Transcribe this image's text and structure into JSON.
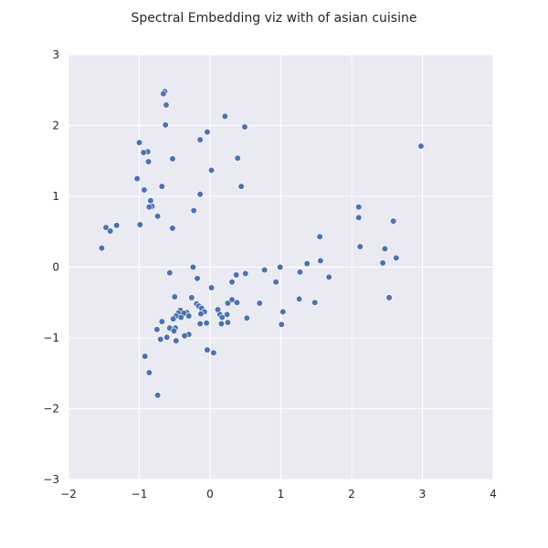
{
  "chart_data": {
    "type": "scatter",
    "title": "Spectral Embedding viz with of asian cuisine",
    "xlabel": "",
    "ylabel": "",
    "xlim": [
      -2,
      4
    ],
    "ylim": [
      -3,
      3
    ],
    "xticks": [
      "−2",
      "−1",
      "0",
      "1",
      "2",
      "3",
      "4"
    ],
    "yticks": [
      "3",
      "2",
      "1",
      "0",
      "−1",
      "−2",
      "−3"
    ],
    "grid": true,
    "point_color": "#4c72b0",
    "background_color": "#eaeaf2",
    "points": [
      {
        "x": -0.64,
        "y": 2.48
      },
      {
        "x": -0.66,
        "y": 2.45
      },
      {
        "x": -0.62,
        "y": 2.29
      },
      {
        "x": 0.21,
        "y": 2.13
      },
      {
        "x": -0.63,
        "y": 2.01
      },
      {
        "x": 0.49,
        "y": 1.98
      },
      {
        "x": -0.04,
        "y": 1.91
      },
      {
        "x": -0.14,
        "y": 1.8
      },
      {
        "x": -1.0,
        "y": 1.76
      },
      {
        "x": -0.88,
        "y": 1.63
      },
      {
        "x": -0.94,
        "y": 1.62
      },
      {
        "x": -0.53,
        "y": 1.53
      },
      {
        "x": 0.39,
        "y": 1.54
      },
      {
        "x": -0.87,
        "y": 1.49
      },
      {
        "x": 0.02,
        "y": 1.37
      },
      {
        "x": -1.03,
        "y": 1.25
      },
      {
        "x": -0.68,
        "y": 1.14
      },
      {
        "x": 0.44,
        "y": 1.14
      },
      {
        "x": -0.93,
        "y": 1.09
      },
      {
        "x": -0.14,
        "y": 1.03
      },
      {
        "x": -0.84,
        "y": 0.94
      },
      {
        "x": -0.82,
        "y": 0.86
      },
      {
        "x": -0.86,
        "y": 0.85
      },
      {
        "x": -0.23,
        "y": 0.8
      },
      {
        "x": -0.74,
        "y": 0.72
      },
      {
        "x": -0.99,
        "y": 0.6
      },
      {
        "x": -1.32,
        "y": 0.59
      },
      {
        "x": -1.47,
        "y": 0.56
      },
      {
        "x": -0.53,
        "y": 0.55
      },
      {
        "x": -1.41,
        "y": 0.51
      },
      {
        "x": -1.53,
        "y": 0.27
      },
      {
        "x": 2.98,
        "y": 1.71
      },
      {
        "x": 2.1,
        "y": 0.85
      },
      {
        "x": 2.1,
        "y": 0.7
      },
      {
        "x": 2.59,
        "y": 0.65
      },
      {
        "x": 1.55,
        "y": 0.43
      },
      {
        "x": 2.12,
        "y": 0.29
      },
      {
        "x": 2.47,
        "y": 0.26
      },
      {
        "x": 2.63,
        "y": 0.13
      },
      {
        "x": 1.56,
        "y": 0.09
      },
      {
        "x": 2.44,
        "y": 0.06
      },
      {
        "x": 1.37,
        "y": 0.05
      },
      {
        "x": 0.99,
        "y": 0.0
      },
      {
        "x": -0.24,
        "y": 0.0
      },
      {
        "x": 0.77,
        "y": -0.04
      },
      {
        "x": 1.27,
        "y": -0.07
      },
      {
        "x": -0.57,
        "y": -0.08
      },
      {
        "x": 0.5,
        "y": -0.09
      },
      {
        "x": 0.37,
        "y": -0.11
      },
      {
        "x": 1.68,
        "y": -0.14
      },
      {
        "x": -0.18,
        "y": -0.16
      },
      {
        "x": 0.93,
        "y": -0.21
      },
      {
        "x": 0.31,
        "y": -0.21
      },
      {
        "x": 0.02,
        "y": -0.29
      },
      {
        "x": -0.5,
        "y": -0.42
      },
      {
        "x": -0.26,
        "y": -0.43
      },
      {
        "x": 2.53,
        "y": -0.43
      },
      {
        "x": 1.26,
        "y": -0.45
      },
      {
        "x": 0.31,
        "y": -0.46
      },
      {
        "x": 1.48,
        "y": -0.5
      },
      {
        "x": 0.38,
        "y": -0.5
      },
      {
        "x": 0.7,
        "y": -0.51
      },
      {
        "x": 0.25,
        "y": -0.51
      },
      {
        "x": -0.19,
        "y": -0.52
      },
      {
        "x": -0.16,
        "y": -0.55
      },
      {
        "x": -0.12,
        "y": -0.58
      },
      {
        "x": 0.11,
        "y": -0.6
      },
      {
        "x": -0.42,
        "y": -0.61
      },
      {
        "x": 1.03,
        "y": -0.63
      },
      {
        "x": -0.08,
        "y": -0.63
      },
      {
        "x": -0.33,
        "y": -0.64
      },
      {
        "x": -0.45,
        "y": -0.65
      },
      {
        "x": -0.37,
        "y": -0.65
      },
      {
        "x": -0.13,
        "y": -0.66
      },
      {
        "x": 0.14,
        "y": -0.67
      },
      {
        "x": 0.24,
        "y": -0.67
      },
      {
        "x": -0.48,
        "y": -0.69
      },
      {
        "x": -0.3,
        "y": -0.69
      },
      {
        "x": -0.41,
        "y": -0.71
      },
      {
        "x": 0.17,
        "y": -0.71
      },
      {
        "x": 0.52,
        "y": -0.72
      },
      {
        "x": -0.52,
        "y": -0.73
      },
      {
        "x": -0.68,
        "y": -0.77
      },
      {
        "x": 0.25,
        "y": -0.78
      },
      {
        "x": -0.05,
        "y": -0.79
      },
      {
        "x": 0.16,
        "y": -0.8
      },
      {
        "x": -0.14,
        "y": -0.8
      },
      {
        "x": 1.01,
        "y": -0.81
      },
      {
        "x": -0.49,
        "y": -0.86
      },
      {
        "x": -0.57,
        "y": -0.86
      },
      {
        "x": -0.75,
        "y": -0.88
      },
      {
        "x": -0.51,
        "y": -0.9
      },
      {
        "x": -0.3,
        "y": -0.95
      },
      {
        "x": -0.36,
        "y": -0.97
      },
      {
        "x": -0.61,
        "y": -0.99
      },
      {
        "x": -0.7,
        "y": -1.02
      },
      {
        "x": -0.48,
        "y": -1.04
      },
      {
        "x": -0.04,
        "y": -1.17
      },
      {
        "x": 0.05,
        "y": -1.21
      },
      {
        "x": -0.92,
        "y": -1.26
      },
      {
        "x": -0.86,
        "y": -1.49
      },
      {
        "x": -0.74,
        "y": -1.81
      }
    ]
  }
}
